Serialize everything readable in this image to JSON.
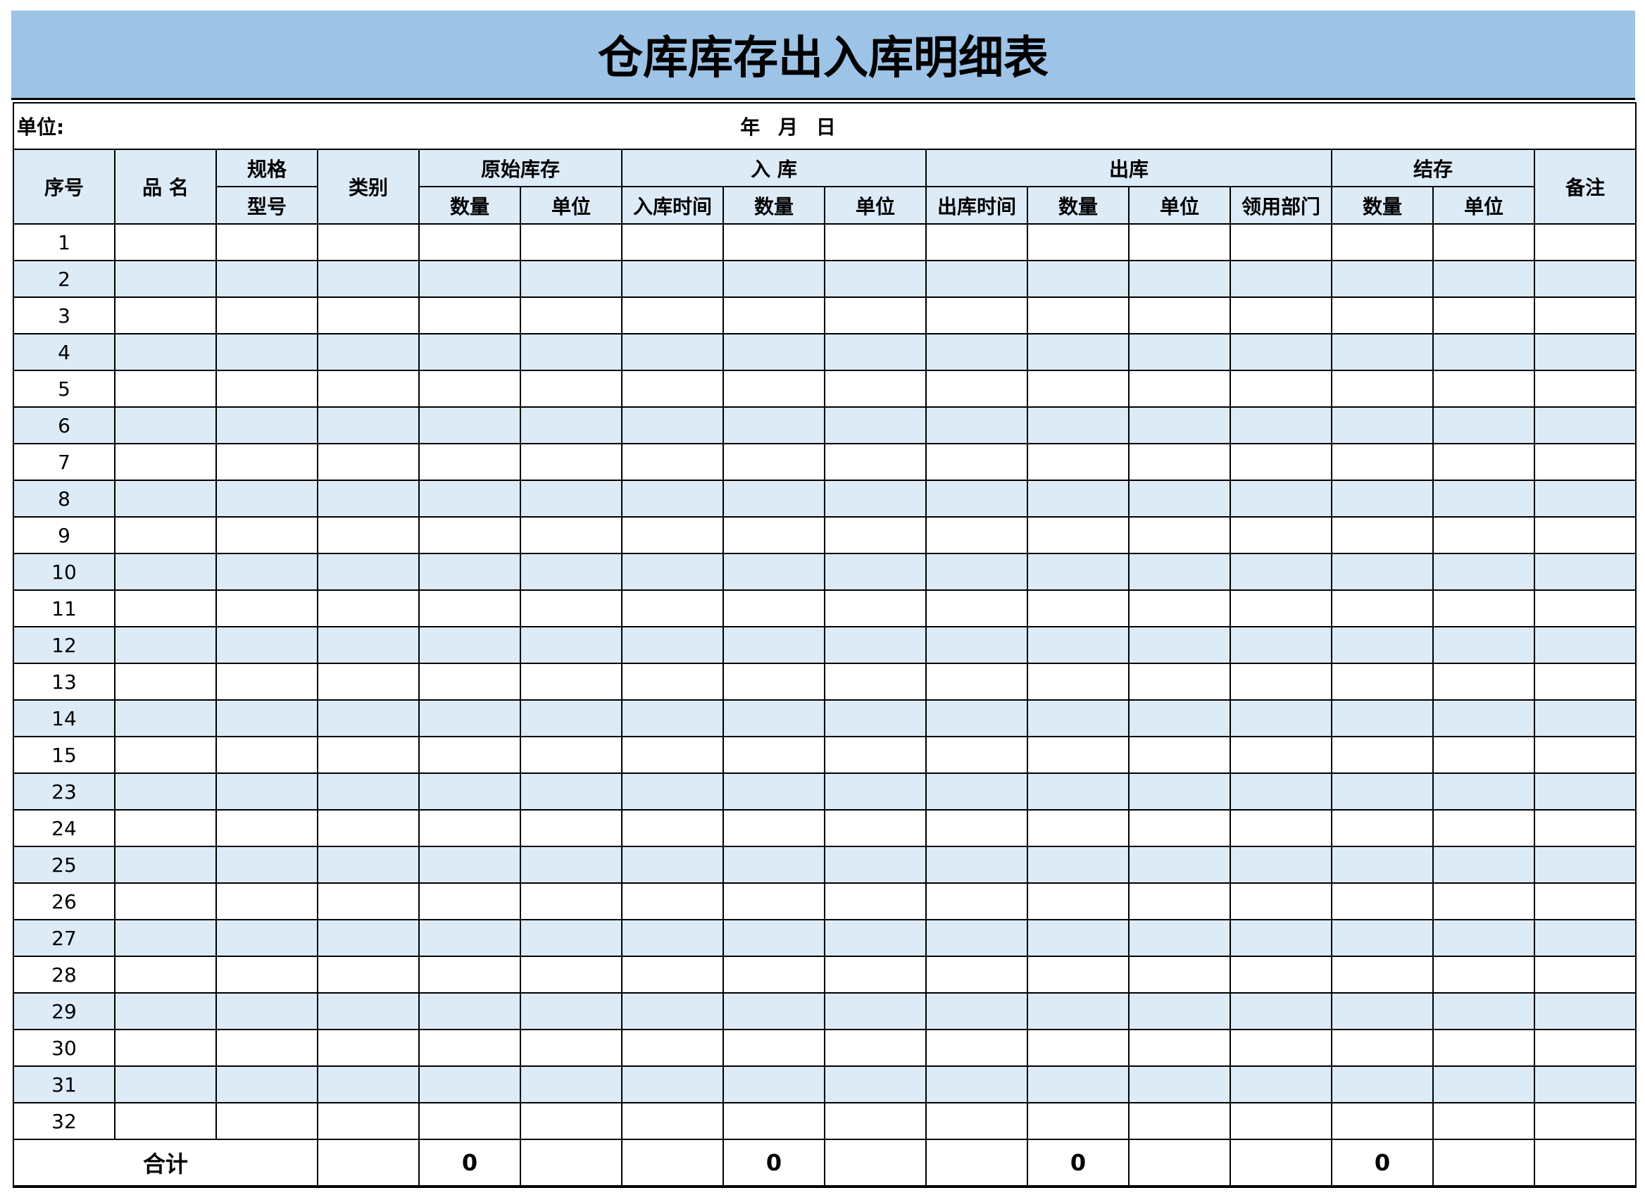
{
  "title": "仓库库存出入库明细表",
  "unit_label": "单位:",
  "date_label": "年 月 日",
  "headers": {
    "seq": "序号",
    "name": "品 名",
    "spec_line1": "规格",
    "spec_line2": "型号",
    "category": "类别",
    "original_stock": "原始库存",
    "inbound": "入 库",
    "outbound": "出库",
    "balance": "结存",
    "remark": "备注",
    "orig_qty": "数量",
    "orig_unit": "单位",
    "in_time": "入库时间",
    "in_qty": "数量",
    "in_unit": "单位",
    "out_time": "出库时间",
    "out_qty": "数量",
    "out_unit": "单位",
    "out_dept": "领用部门",
    "bal_qty": "数量",
    "bal_unit": "单位"
  },
  "rows": [
    "1",
    "2",
    "3",
    "4",
    "5",
    "6",
    "7",
    "8",
    "9",
    "10",
    "11",
    "12",
    "13",
    "14",
    "15",
    "23",
    "24",
    "25",
    "26",
    "27",
    "28",
    "29",
    "30",
    "31",
    "32"
  ],
  "total": {
    "label": "合计",
    "orig_qty": "0",
    "in_qty": "0",
    "out_qty": "0",
    "bal_qty": "0"
  },
  "colors": {
    "title_band": "#9dc3e6",
    "header_fill": "#ddebf7",
    "stripe": "#ddebf7"
  }
}
